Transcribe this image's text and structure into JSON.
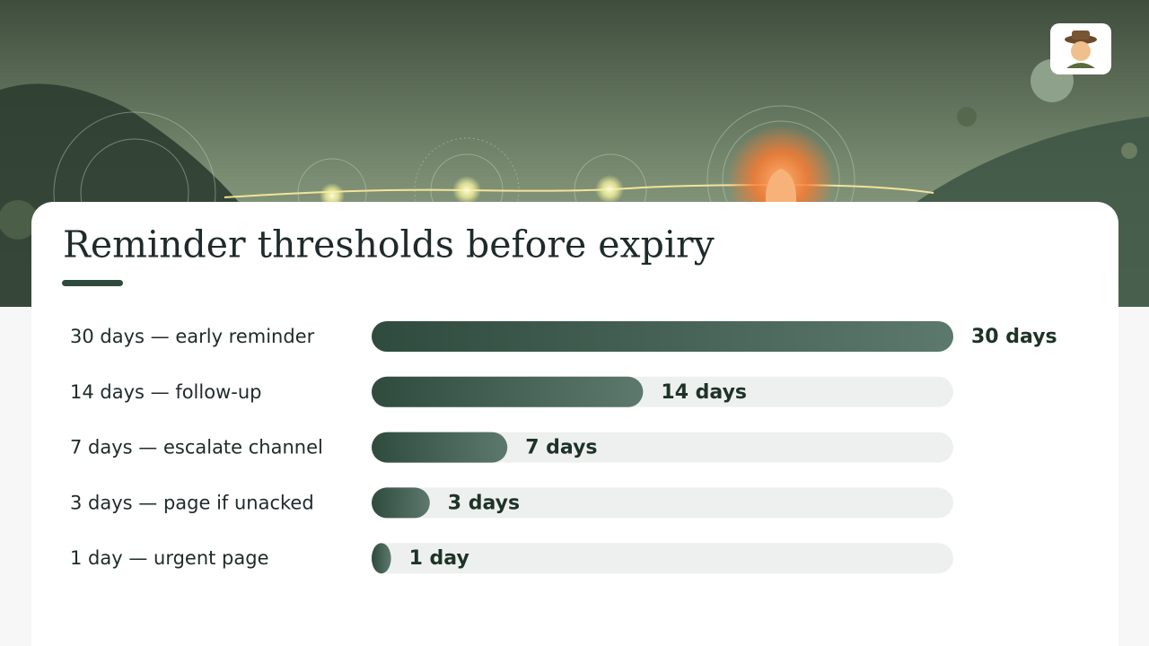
{
  "chart_data": {
    "type": "bar",
    "orientation": "horizontal",
    "title": "Reminder thresholds before expiry",
    "categories": [
      "30 days — early reminder",
      "14 days — follow-up",
      "7 days — escalate channel",
      "3 days — page if unacked",
      "1 day — urgent page"
    ],
    "values": [
      30,
      14,
      7,
      3,
      1
    ],
    "value_labels": [
      "30 days",
      "14 days",
      "7 days",
      "3 days",
      "1 day"
    ],
    "xlim": [
      0,
      30
    ],
    "color": "#2f4b3e",
    "track_color": "#eef0ef"
  }
}
